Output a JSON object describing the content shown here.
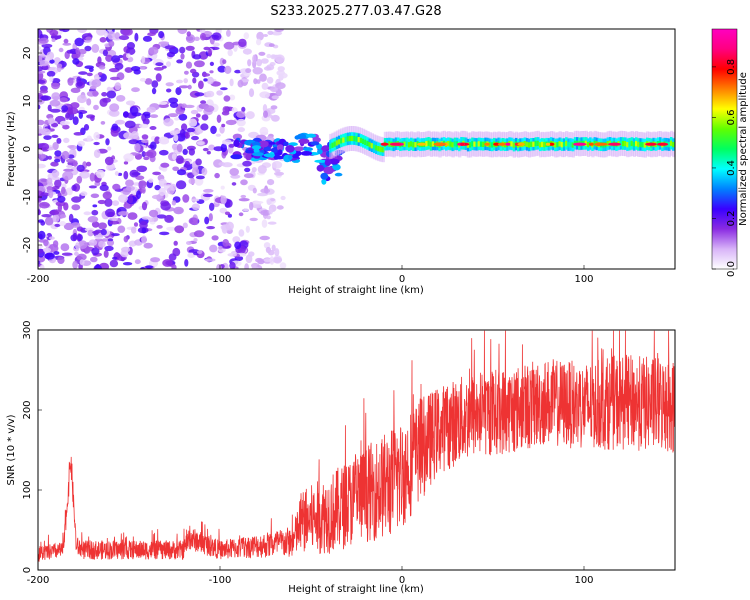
{
  "figure_title": "S233.2025.277.03.47.G28",
  "chart_data": [
    {
      "type": "heatmap",
      "xlabel": "Height of straight line (km)",
      "ylabel": "Frequency (Hz)",
      "xlim": [
        -200,
        150
      ],
      "ylim": [
        -25,
        25
      ],
      "xticks": [
        -200,
        -100,
        0,
        100
      ],
      "yticks": [
        -20,
        -10,
        0,
        10,
        20
      ],
      "colorbar": {
        "label": "Normalized spectral amplitude",
        "range": [
          0,
          0.95
        ],
        "ticks": [
          0.0,
          0.2,
          0.4,
          0.6,
          0.8
        ],
        "colormap": [
          "#ffffff",
          "#d8b4f8",
          "#8a2be2",
          "#3a00ff",
          "#0080ff",
          "#00ffff",
          "#00ff60",
          "#60ff00",
          "#ffff00",
          "#ff8000",
          "#ff0000",
          "#ff0080",
          "#ff00c0"
        ]
      },
      "regions": [
        {
          "name": "noise",
          "x_range": [
            -200,
            -70
          ],
          "freq_range": [
            -25,
            25
          ],
          "amplitude": 0.05
        },
        {
          "name": "transition",
          "x_range": [
            -90,
            -35
          ],
          "freq_center": 0,
          "amplitude": 0.25
        },
        {
          "name": "signal-line",
          "x_range": [
            -35,
            150
          ],
          "freq_center": 1,
          "amplitude": 0.55
        }
      ]
    },
    {
      "type": "line",
      "xlabel": "Height of straight line (km)",
      "ylabel": "SNR (10 * v/v)",
      "xlim": [
        -200,
        150
      ],
      "ylim": [
        0,
        300
      ],
      "xticks": [
        -200,
        -100,
        0,
        100
      ],
      "yticks": [
        0,
        100,
        200,
        300
      ],
      "series": [
        {
          "name": "SNR",
          "color": "#ee3333",
          "envelope": {
            "x": [
              -200,
              -186,
              -182,
              -179,
              -175,
              -150,
              -120,
              -117,
              -100,
              -80,
              -60,
              -55,
              -40,
              -20,
              -5,
              0,
              10,
              20,
              30,
              40,
              60,
              80,
              100,
              120,
              150
            ],
            "mean": [
              20,
              25,
              140,
              30,
              25,
              25,
              25,
              40,
              25,
              30,
              35,
              60,
              70,
              95,
              110,
              120,
              150,
              175,
              185,
              195,
              200,
              210,
              205,
              210,
              205
            ],
            "spread": [
              10,
              10,
              20,
              12,
              12,
              12,
              12,
              15,
              12,
              15,
              20,
              40,
              50,
              60,
              70,
              70,
              65,
              55,
              55,
              55,
              55,
              55,
              55,
              60,
              60
            ]
          }
        }
      ]
    }
  ]
}
